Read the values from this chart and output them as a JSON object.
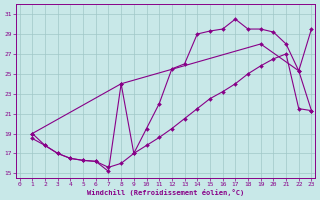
{
  "background_color": "#c8e8e8",
  "grid_color": "#a0c8c8",
  "line_color": "#880088",
  "xlabel": "Windchill (Refroidissement éolien,°C)",
  "xlim": [
    -0.3,
    23.3
  ],
  "ylim": [
    14.5,
    32.0
  ],
  "xticks": [
    0,
    1,
    2,
    3,
    4,
    5,
    6,
    7,
    8,
    9,
    10,
    11,
    12,
    13,
    14,
    15,
    16,
    17,
    18,
    19,
    20,
    21,
    22,
    23
  ],
  "yticks": [
    15,
    17,
    19,
    21,
    23,
    25,
    27,
    29,
    31
  ],
  "line1_x": [
    1,
    2,
    3,
    4,
    5,
    6,
    7,
    8,
    9,
    10,
    11,
    12,
    13,
    14,
    15,
    16,
    17,
    18,
    19,
    20,
    21,
    22,
    23
  ],
  "line1_y": [
    19.0,
    17.8,
    17.0,
    16.5,
    16.3,
    16.2,
    15.2,
    24.0,
    17.0,
    19.5,
    22.0,
    25.5,
    26.0,
    29.0,
    29.3,
    29.5,
    30.5,
    29.5,
    29.5,
    29.2,
    28.0,
    25.3,
    29.5
  ],
  "line2_x": [
    1,
    8,
    19,
    22,
    23
  ],
  "line2_y": [
    19.0,
    24.0,
    28.0,
    25.3,
    21.3
  ],
  "line3_x": [
    1,
    2,
    3,
    4,
    5,
    6,
    7,
    8,
    9,
    10,
    11,
    12,
    13,
    14,
    15,
    16,
    17,
    18,
    19,
    20,
    21,
    22,
    23
  ],
  "line3_y": [
    18.5,
    17.8,
    17.0,
    16.5,
    16.3,
    16.2,
    15.6,
    16.0,
    17.0,
    17.8,
    18.6,
    19.5,
    20.5,
    21.5,
    22.5,
    23.2,
    24.0,
    25.0,
    25.8,
    26.5,
    27.0,
    21.5,
    21.3
  ]
}
